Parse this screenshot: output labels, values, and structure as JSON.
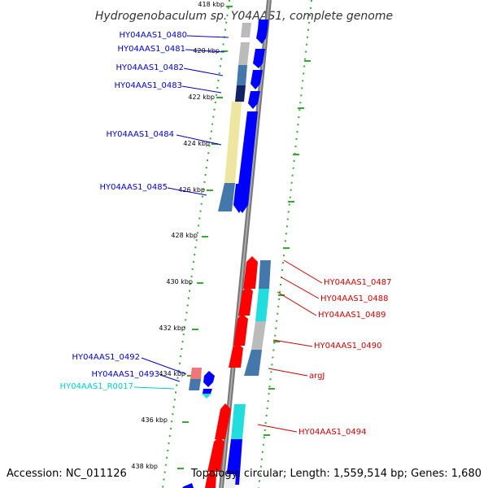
{
  "title": "Hydrogenobaculum sp. Y04AAS1, complete genome",
  "footer": {
    "accession": "Accession: NC_011126",
    "topology": "Topology: circular; Length: 1,559,514 bp; Genes: 1,680"
  },
  "colors": {
    "forward_cds": "#0000ff",
    "reverse_cds": "#ff0000",
    "blue_label": "#0000cc",
    "red_label": "#cc0000",
    "rna_label": "#00cccc",
    "tick": "#33aa33",
    "backbone": "#888888"
  },
  "ticks": [
    {
      "label": "418 kbp"
    },
    {
      "label": "420 kbp"
    },
    {
      "label": "422 kbp"
    },
    {
      "label": "424 kbp"
    },
    {
      "label": "426 kbp"
    },
    {
      "label": "428 kbp"
    },
    {
      "label": "430 kbp"
    },
    {
      "label": "432 kbp"
    },
    {
      "label": "434 kbp"
    },
    {
      "label": "436 kbp"
    },
    {
      "label": "438 kbp"
    }
  ],
  "left_labels": [
    {
      "text": "HY04AAS1_0480"
    },
    {
      "text": "HY04AAS1_0481"
    },
    {
      "text": "HY04AAS1_0482"
    },
    {
      "text": "HY04AAS1_0483"
    },
    {
      "text": "HY04AAS1_0484"
    },
    {
      "text": "HY04AAS1_0485"
    },
    {
      "text": "HY04AAS1_0492"
    },
    {
      "text": "HY04AAS1_0493"
    },
    {
      "text": "HY04AAS1_R0017"
    }
  ],
  "right_labels": [
    {
      "text": "HY04AAS1_0487"
    },
    {
      "text": "HY04AAS1_0488"
    },
    {
      "text": "HY04AAS1_0489"
    },
    {
      "text": "HY04AAS1_0490"
    },
    {
      "text": "argJ"
    },
    {
      "text": "HY04AAS1_0494"
    }
  ]
}
